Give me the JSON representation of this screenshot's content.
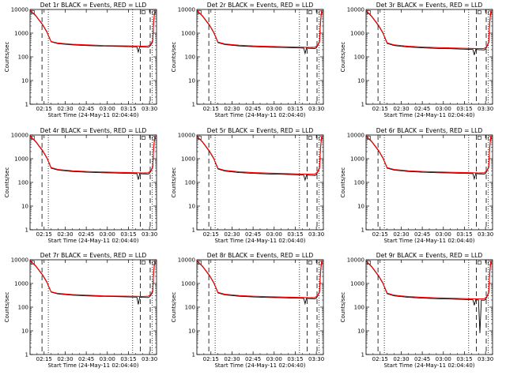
{
  "chart_data": [
    {
      "type": "line",
      "title": "Det 1r BLACK = Events, RED = LLD",
      "xlabel": "Start Time (24-May-11 02:04:40)",
      "ylabel": "Counts/sec",
      "x_ticks": [
        "02:15",
        "02:30",
        "02:45",
        "03:00",
        "03:15",
        "03:30"
      ],
      "y_ticks": [
        "1",
        "10",
        "100",
        "1000",
        "10000"
      ],
      "ylim": [
        1,
        10000
      ],
      "y_scale": "log",
      "series": [
        {
          "color": "#000000",
          "x": [
            0,
            4,
            9,
            12,
            13.5,
            15,
            20,
            30,
            40,
            52,
            60,
            70,
            76,
            77,
            78,
            80,
            82,
            84,
            85,
            86,
            87.3,
            88,
            88.8
          ],
          "values": [
            9200,
            5400,
            2200,
            1100,
            680,
            430,
            360,
            320,
            300,
            285,
            280,
            270,
            265,
            160,
            265,
            260,
            258,
            255,
            270,
            320,
            450,
            3200,
            9000
          ]
        },
        {
          "color": "#ff0000",
          "x": [
            0,
            4,
            9,
            12,
            13.5,
            15,
            20,
            30,
            40,
            52,
            60,
            70,
            76,
            80,
            84,
            86,
            87.3,
            88,
            88.8
          ],
          "values": [
            9500,
            5600,
            2300,
            1150,
            700,
            445,
            380,
            340,
            320,
            300,
            295,
            290,
            285,
            282,
            290,
            335,
            500,
            3600,
            9400
          ]
        }
      ]
    },
    {
      "type": "line",
      "title": "Det 2r BLACK = Events, RED = LLD",
      "xlabel": "Start Time (24-May-11 02:04:40)",
      "ylabel": "Counts/sec",
      "x_ticks": [
        "02:15",
        "02:30",
        "02:45",
        "03:00",
        "03:15",
        "03:30"
      ],
      "y_ticks": [
        "1",
        "10",
        "100",
        "1000",
        "10000"
      ],
      "ylim": [
        1,
        10000
      ],
      "y_scale": "log",
      "series": [
        {
          "color": "#000000",
          "x": [
            0,
            4,
            9,
            12,
            13.5,
            15,
            20,
            30,
            40,
            52,
            60,
            70,
            76,
            77,
            78,
            80,
            82,
            84,
            85,
            86,
            87.3,
            88,
            88.8
          ],
          "values": [
            9000,
            5200,
            2100,
            1050,
            650,
            400,
            330,
            290,
            270,
            255,
            250,
            240,
            235,
            140,
            235,
            230,
            228,
            225,
            240,
            300,
            430,
            3000,
            8800
          ]
        },
        {
          "color": "#ff0000",
          "x": [
            0,
            4,
            9,
            12,
            13.5,
            15,
            20,
            30,
            40,
            52,
            60,
            70,
            76,
            80,
            84,
            86,
            87.3,
            88,
            88.8
          ],
          "values": [
            9300,
            5400,
            2200,
            1100,
            680,
            420,
            350,
            310,
            290,
            275,
            268,
            260,
            255,
            250,
            255,
            310,
            470,
            3400,
            9200
          ]
        }
      ]
    },
    {
      "type": "line",
      "title": "Det 3r BLACK = Events, RED = LLD",
      "xlabel": "Start Time (24-May-11 02:04:40)",
      "ylabel": "Counts/sec",
      "x_ticks": [
        "02:15",
        "02:30",
        "02:45",
        "03:00",
        "03:15",
        "03:30"
      ],
      "y_ticks": [
        "1",
        "10",
        "100",
        "1000",
        "10000"
      ],
      "ylim": [
        1,
        10000
      ],
      "y_scale": "log",
      "series": [
        {
          "color": "#000000",
          "x": [
            0,
            4,
            9,
            12,
            13.5,
            15,
            20,
            30,
            40,
            52,
            60,
            70,
            76,
            77,
            78,
            80,
            82,
            84,
            85,
            86,
            87.3,
            88,
            88.8
          ],
          "values": [
            8800,
            5000,
            2000,
            1000,
            600,
            370,
            300,
            260,
            240,
            225,
            220,
            210,
            205,
            120,
            205,
            200,
            198,
            195,
            210,
            270,
            400,
            2800,
            8600
          ]
        },
        {
          "color": "#ff0000",
          "x": [
            0,
            4,
            9,
            12,
            13.5,
            15,
            20,
            30,
            40,
            52,
            60,
            70,
            76,
            80,
            84,
            86,
            87.3,
            88,
            88.8
          ],
          "values": [
            9100,
            5200,
            2100,
            1050,
            630,
            390,
            320,
            280,
            260,
            245,
            238,
            230,
            225,
            222,
            225,
            280,
            440,
            3200,
            9000
          ]
        }
      ]
    },
    {
      "type": "line",
      "title": "Det 4r BLACK = Events, RED = LLD",
      "xlabel": "Start Time (24-May-11 02:04:40)",
      "ylabel": "Counts/sec",
      "x_ticks": [
        "02:15",
        "02:30",
        "02:45",
        "03:00",
        "03:15",
        "03:30"
      ],
      "y_ticks": [
        "1",
        "10",
        "100",
        "1000",
        "10000"
      ],
      "ylim": [
        1,
        10000
      ],
      "y_scale": "log",
      "series": [
        {
          "color": "#000000",
          "x": [
            0,
            4,
            9,
            12,
            13.5,
            15,
            20,
            30,
            40,
            52,
            60,
            70,
            76,
            77,
            78,
            80,
            82,
            84,
            85,
            86,
            87.3,
            88,
            88.8
          ],
          "values": [
            9000,
            5200,
            2100,
            1050,
            650,
            400,
            330,
            290,
            270,
            255,
            250,
            240,
            235,
            130,
            235,
            230,
            228,
            225,
            240,
            300,
            430,
            3000,
            8800
          ]
        },
        {
          "color": "#ff0000",
          "x": [
            0,
            4,
            9,
            12,
            13.5,
            15,
            20,
            30,
            40,
            52,
            60,
            70,
            76,
            80,
            84,
            86,
            87.3,
            88,
            88.8
          ],
          "values": [
            9300,
            5400,
            2200,
            1100,
            680,
            420,
            350,
            310,
            290,
            275,
            268,
            260,
            255,
            250,
            255,
            310,
            470,
            3400,
            9200
          ]
        }
      ]
    },
    {
      "type": "line",
      "title": "Det 5r BLACK = Events, RED = LLD",
      "xlabel": "Start Time (24-May-11 02:04:40)",
      "ylabel": "Counts/sec",
      "x_ticks": [
        "02:15",
        "02:30",
        "02:45",
        "03:00",
        "03:15",
        "03:30"
      ],
      "y_ticks": [
        "1",
        "10",
        "100",
        "1000",
        "10000"
      ],
      "ylim": [
        1,
        10000
      ],
      "y_scale": "log",
      "series": [
        {
          "color": "#000000",
          "x": [
            0,
            4,
            9,
            12,
            13.5,
            15,
            20,
            30,
            40,
            52,
            60,
            70,
            76,
            77,
            78,
            80,
            82,
            84,
            85,
            86,
            87.3,
            88,
            88.8
          ],
          "values": [
            8800,
            5000,
            2000,
            1000,
            600,
            370,
            300,
            260,
            240,
            225,
            220,
            210,
            205,
            125,
            205,
            200,
            198,
            195,
            210,
            270,
            400,
            2800,
            8600
          ]
        },
        {
          "color": "#ff0000",
          "x": [
            0,
            4,
            9,
            12,
            13.5,
            15,
            20,
            30,
            40,
            52,
            60,
            70,
            76,
            80,
            84,
            86,
            87.3,
            88,
            88.8
          ],
          "values": [
            9100,
            5200,
            2100,
            1050,
            630,
            390,
            320,
            280,
            260,
            245,
            238,
            230,
            225,
            222,
            225,
            280,
            440,
            3200,
            9000
          ]
        }
      ]
    },
    {
      "type": "line",
      "title": "Det 6r BLACK = Events, RED = LLD",
      "xlabel": "Start Time (24-May-11 02:04:40)",
      "ylabel": "Counts/sec",
      "x_ticks": [
        "02:15",
        "02:30",
        "02:45",
        "03:00",
        "03:15",
        "03:30"
      ],
      "y_ticks": [
        "1",
        "10",
        "100",
        "1000",
        "10000"
      ],
      "ylim": [
        1,
        10000
      ],
      "y_scale": "log",
      "series": [
        {
          "color": "#000000",
          "x": [
            0,
            4,
            9,
            12,
            13.5,
            15,
            20,
            30,
            40,
            52,
            60,
            70,
            76,
            77,
            78,
            80,
            82,
            84,
            85,
            86,
            87.3,
            88,
            88.8
          ],
          "values": [
            9000,
            5200,
            2100,
            1050,
            650,
            400,
            330,
            290,
            270,
            255,
            250,
            240,
            235,
            140,
            235,
            230,
            228,
            225,
            240,
            300,
            430,
            3000,
            8800
          ]
        },
        {
          "color": "#ff0000",
          "x": [
            0,
            4,
            9,
            12,
            13.5,
            15,
            20,
            30,
            40,
            52,
            60,
            70,
            76,
            80,
            84,
            86,
            87.3,
            88,
            88.8
          ],
          "values": [
            9300,
            5400,
            2200,
            1100,
            680,
            420,
            350,
            310,
            290,
            275,
            268,
            260,
            255,
            250,
            255,
            310,
            470,
            3400,
            9200
          ]
        }
      ]
    },
    {
      "type": "line",
      "title": "Det 7r BLACK = Events, RED = LLD",
      "xlabel": "Start Time (24-May-11 02:04:40)",
      "ylabel": "Counts/sec",
      "x_ticks": [
        "02:15",
        "02:30",
        "02:45",
        "03:00",
        "03:15",
        "03:30"
      ],
      "y_ticks": [
        "1",
        "10",
        "100",
        "1000",
        "10000"
      ],
      "ylim": [
        1,
        10000
      ],
      "y_scale": "log",
      "series": [
        {
          "color": "#000000",
          "x": [
            0,
            4,
            9,
            12,
            13.5,
            15,
            20,
            30,
            40,
            52,
            60,
            70,
            76,
            77,
            78,
            80,
            82,
            84,
            85,
            86,
            87.3,
            88,
            88.8
          ],
          "values": [
            9200,
            5400,
            2200,
            1100,
            680,
            430,
            360,
            320,
            300,
            285,
            280,
            270,
            265,
            130,
            265,
            260,
            258,
            255,
            270,
            320,
            450,
            3200,
            9000
          ]
        },
        {
          "color": "#ff0000",
          "x": [
            0,
            4,
            9,
            12,
            13.5,
            15,
            20,
            30,
            40,
            52,
            60,
            70,
            76,
            80,
            84,
            86,
            87.3,
            88,
            88.8
          ],
          "values": [
            9500,
            5600,
            2300,
            1150,
            700,
            445,
            380,
            340,
            320,
            300,
            295,
            290,
            285,
            282,
            290,
            335,
            500,
            3600,
            9400
          ]
        }
      ]
    },
    {
      "type": "line",
      "title": "Det 8r BLACK = Events, RED = LLD",
      "xlabel": "Start Time (24-May-11 02:04:40)",
      "ylabel": "Counts/sec",
      "x_ticks": [
        "02:15",
        "02:30",
        "02:45",
        "03:00",
        "03:15",
        "03:30"
      ],
      "y_ticks": [
        "1",
        "10",
        "100",
        "1000",
        "10000"
      ],
      "ylim": [
        1,
        10000
      ],
      "y_scale": "log",
      "series": [
        {
          "color": "#000000",
          "x": [
            0,
            4,
            9,
            12,
            13.5,
            15,
            20,
            30,
            40,
            52,
            60,
            70,
            76,
            77,
            78,
            80,
            82,
            84,
            85,
            86,
            87.3,
            88,
            88.8
          ],
          "values": [
            9000,
            5200,
            2100,
            1050,
            650,
            400,
            330,
            290,
            270,
            255,
            250,
            240,
            235,
            140,
            235,
            230,
            228,
            225,
            240,
            300,
            430,
            3000,
            8800
          ]
        },
        {
          "color": "#ff0000",
          "x": [
            0,
            4,
            9,
            12,
            13.5,
            15,
            20,
            30,
            40,
            52,
            60,
            70,
            76,
            80,
            84,
            86,
            87.3,
            88,
            88.8
          ],
          "values": [
            9300,
            5400,
            2200,
            1100,
            680,
            420,
            350,
            310,
            290,
            275,
            268,
            260,
            255,
            250,
            255,
            310,
            470,
            3400,
            9200
          ]
        }
      ]
    },
    {
      "type": "line",
      "title": "Det 9r BLACK = Events, RED = LLD",
      "xlabel": "Start Time (24-May-11 02:04:40)",
      "ylabel": "Counts/sec",
      "x_ticks": [
        "02:15",
        "02:30",
        "02:45",
        "03:00",
        "03:15",
        "03:30"
      ],
      "y_ticks": [
        "1",
        "10",
        "100",
        "1000",
        "10000"
      ],
      "ylim": [
        1,
        10000
      ],
      "y_scale": "log",
      "series": [
        {
          "color": "#000000",
          "x": [
            0,
            4,
            9,
            12,
            13.5,
            15,
            20,
            30,
            40,
            52,
            60,
            70,
            76,
            77,
            78,
            80,
            81,
            82,
            84,
            85,
            86,
            87.3,
            88,
            88.8
          ],
          "values": [
            8800,
            5000,
            2000,
            1000,
            600,
            370,
            300,
            260,
            240,
            225,
            220,
            210,
            205,
            120,
            205,
            200,
            8,
            198,
            195,
            210,
            270,
            400,
            2800,
            8600
          ]
        },
        {
          "color": "#ff0000",
          "x": [
            0,
            4,
            9,
            12,
            13.5,
            15,
            20,
            30,
            40,
            52,
            60,
            70,
            76,
            80,
            84,
            86,
            87.3,
            88,
            88.8
          ],
          "values": [
            9100,
            5200,
            2100,
            1050,
            630,
            390,
            320,
            280,
            260,
            245,
            238,
            230,
            225,
            222,
            225,
            280,
            440,
            3200,
            9000
          ]
        }
      ]
    }
  ]
}
